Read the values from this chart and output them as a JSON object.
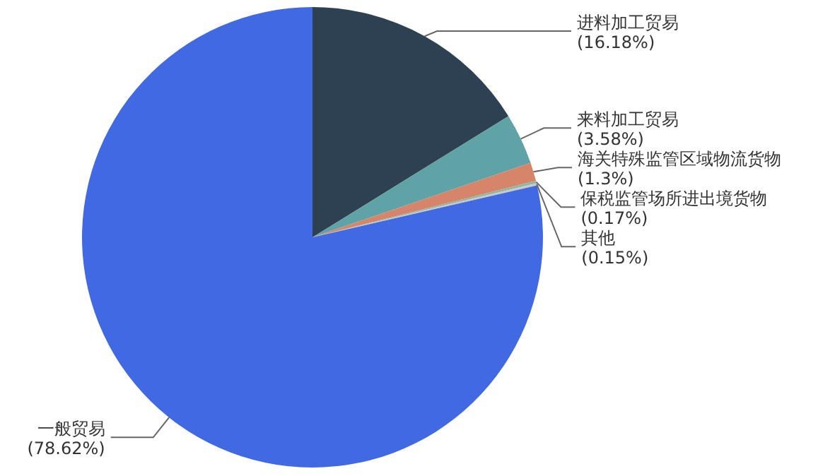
{
  "chart_data": {
    "type": "pie",
    "categories": [
      "进料加工贸易",
      "来料加工贸易",
      "海关特殊监管区域物流货物",
      "保税监管场所进出境货物",
      "其他",
      "一般贸易"
    ],
    "values": [
      16.18,
      3.58,
      1.3,
      0.17,
      0.15,
      78.62
    ],
    "value_labels": [
      "(16.18%)",
      "(3.58%)",
      "(1.3%)",
      "(0.17%)",
      "(0.15%)",
      "(78.62%)"
    ],
    "colors": [
      "#2e4152",
      "#5fa3a6",
      "#d6856a",
      "#8fb8a0",
      "#c9c9c9",
      "#4169e1"
    ]
  }
}
